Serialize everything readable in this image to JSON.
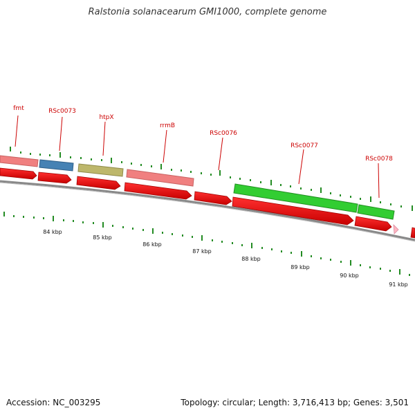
{
  "title": "Ralstonia solanacearum GMI1000, complete genome",
  "footer": {
    "accession": "Accession: NC_003295",
    "summary": "Topology: circular; Length: 3,716,413 bp; Genes: 3,501"
  },
  "gene_labels": [
    "fmt",
    "RSc0073",
    "htpX",
    "rrmB",
    "RSc0076",
    "RSc0077",
    "RSc0078"
  ],
  "kbp_labels": [
    "84 kbp",
    "85 kbp",
    "86 kbp",
    "87 kbp",
    "88 kbp",
    "89 kbp",
    "90 kbp",
    "91 kbp"
  ],
  "colors": {
    "forward_cds": "#ff0000",
    "fmt": "#f08080",
    "RSc0073": "#4682b4",
    "htpX": "#bdb76b",
    "rrmB": "#f08080",
    "RSc0077": "#32cd32",
    "RSc0078": "#32cd32",
    "tick": "#228b22",
    "backbone": "#888888"
  }
}
